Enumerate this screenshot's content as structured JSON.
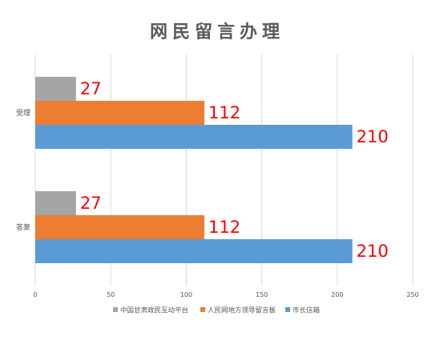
{
  "chart_data": {
    "type": "bar",
    "orientation": "horizontal",
    "title": "网民留言办理",
    "categories": [
      "受理",
      "答复"
    ],
    "series": [
      {
        "name": "中国甘肃政民互动平台",
        "values": [
          27,
          27
        ],
        "color": "#a5a5a5"
      },
      {
        "name": "人民网地方领导留言板",
        "values": [
          112,
          112
        ],
        "color": "#ed7d31"
      },
      {
        "name": "市长信箱",
        "values": [
          210,
          210
        ],
        "color": "#5b9bd5"
      }
    ],
    "x_ticks": [
      "0",
      "50",
      "100",
      "150",
      "200",
      "250"
    ],
    "xlim": [
      0,
      250
    ],
    "grid": true,
    "legend_position": "bottom",
    "data_label_color": "#ff0000"
  }
}
